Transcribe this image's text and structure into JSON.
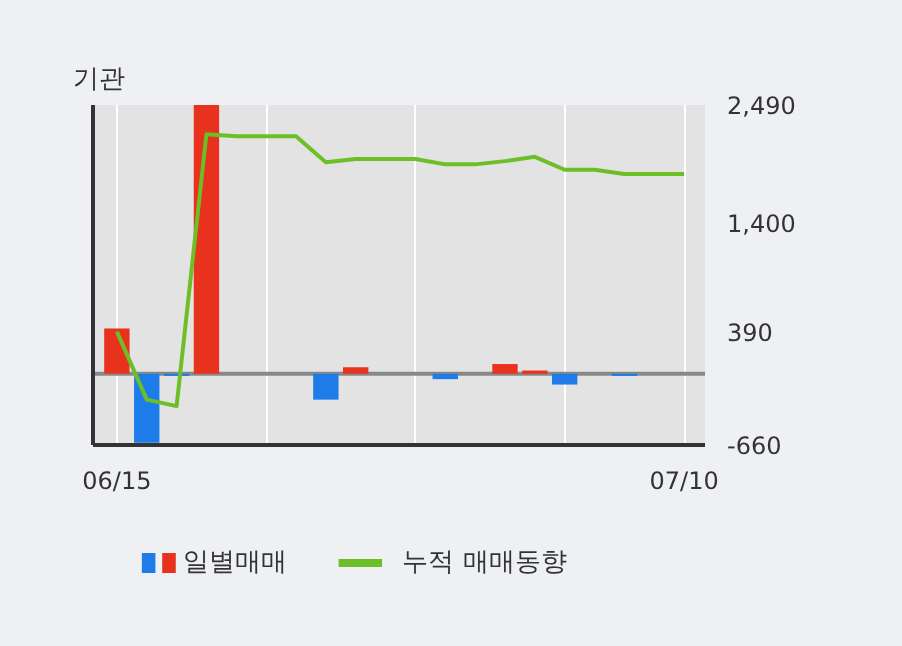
{
  "chart_data": {
    "type": "bar",
    "title": "기관",
    "categories": [
      "06/15",
      null,
      null,
      null,
      null,
      null,
      null,
      null,
      null,
      null,
      null,
      null,
      null,
      null,
      null,
      null,
      null,
      null,
      null,
      "07/10"
    ],
    "ylim": [
      -660,
      2490
    ],
    "yticks": [
      -660,
      390,
      {
        "value": 1400,
        "label": "1,400"
      },
      {
        "value": 2490,
        "label": "2,490"
      }
    ],
    "series": [
      {
        "name": "일별매매",
        "values": [
          420,
          -640,
          -20,
          2490,
          0,
          0,
          0,
          -240,
          60,
          0,
          0,
          -50,
          0,
          90,
          30,
          -100,
          0,
          -20,
          0,
          0
        ],
        "colors": [
          "#e8321e",
          "#1e7ce8",
          "#1e7ce8",
          "#e8321e",
          "#e8321e",
          "#e8321e",
          "#e8321e",
          "#1e7ce8",
          "#e8321e",
          "#e8321e",
          "#e8321e",
          "#1e7ce8",
          "#e8321e",
          "#e8321e",
          "#e8321e",
          "#1e7ce8",
          "#e8321e",
          "#1e7ce8",
          "#e8321e",
          "#e8321e"
        ]
      },
      {
        "name": "누적 매매동향",
        "type": "line",
        "color": "#6cbf26",
        "values": [
          390,
          -240,
          -300,
          2220,
          2200,
          2200,
          2200,
          1960,
          1990,
          1990,
          1990,
          1940,
          1940,
          1970,
          2010,
          1890,
          1890,
          1850,
          1850,
          1850
        ]
      }
    ],
    "ref_lines": [
      {
        "axis": "y",
        "value": 0,
        "label": null,
        "color": "#888888"
      }
    ],
    "grid": true,
    "legend": "bottom"
  }
}
